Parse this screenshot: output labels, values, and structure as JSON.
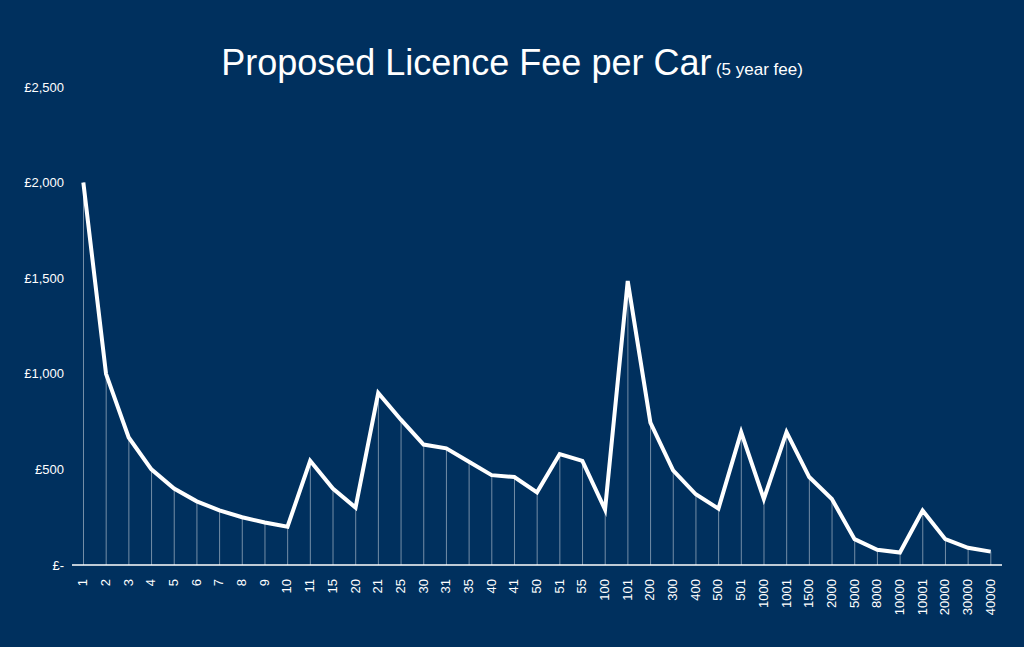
{
  "chart_data": {
    "type": "line",
    "title": "Proposed Licence Fee per Car",
    "subtitle": "(5 year fee)",
    "categories": [
      "1",
      "2",
      "3",
      "4",
      "5",
      "6",
      "7",
      "8",
      "9",
      "10",
      "11",
      "15",
      "20",
      "21",
      "25",
      "30",
      "31",
      "35",
      "40",
      "41",
      "50",
      "51",
      "55",
      "100",
      "101",
      "200",
      "300",
      "400",
      "500",
      "501",
      "1000",
      "1001",
      "1500",
      "2000",
      "5000",
      "8000",
      "10000",
      "10001",
      "20000",
      "30000",
      "40000"
    ],
    "values": [
      2000,
      1000,
      667,
      500,
      400,
      333,
      286,
      250,
      222,
      200,
      545,
      400,
      300,
      900,
      760,
      630,
      610,
      540,
      470,
      460,
      380,
      580,
      545,
      290,
      1485,
      745,
      495,
      370,
      295,
      695,
      345,
      695,
      460,
      345,
      135,
      80,
      65,
      285,
      135,
      90,
      70
    ],
    "color": "#ffffff",
    "ylim": [
      0,
      2500
    ],
    "yticks": [
      {
        "value": 0,
        "label": "£-"
      },
      {
        "value": 500,
        "label": "£500"
      },
      {
        "value": 1000,
        "label": "£1,000"
      },
      {
        "value": 1500,
        "label": "£1,500"
      },
      {
        "value": 2000,
        "label": "£2,000"
      },
      {
        "value": 2500,
        "label": "£2,500"
      }
    ],
    "grid": false
  }
}
